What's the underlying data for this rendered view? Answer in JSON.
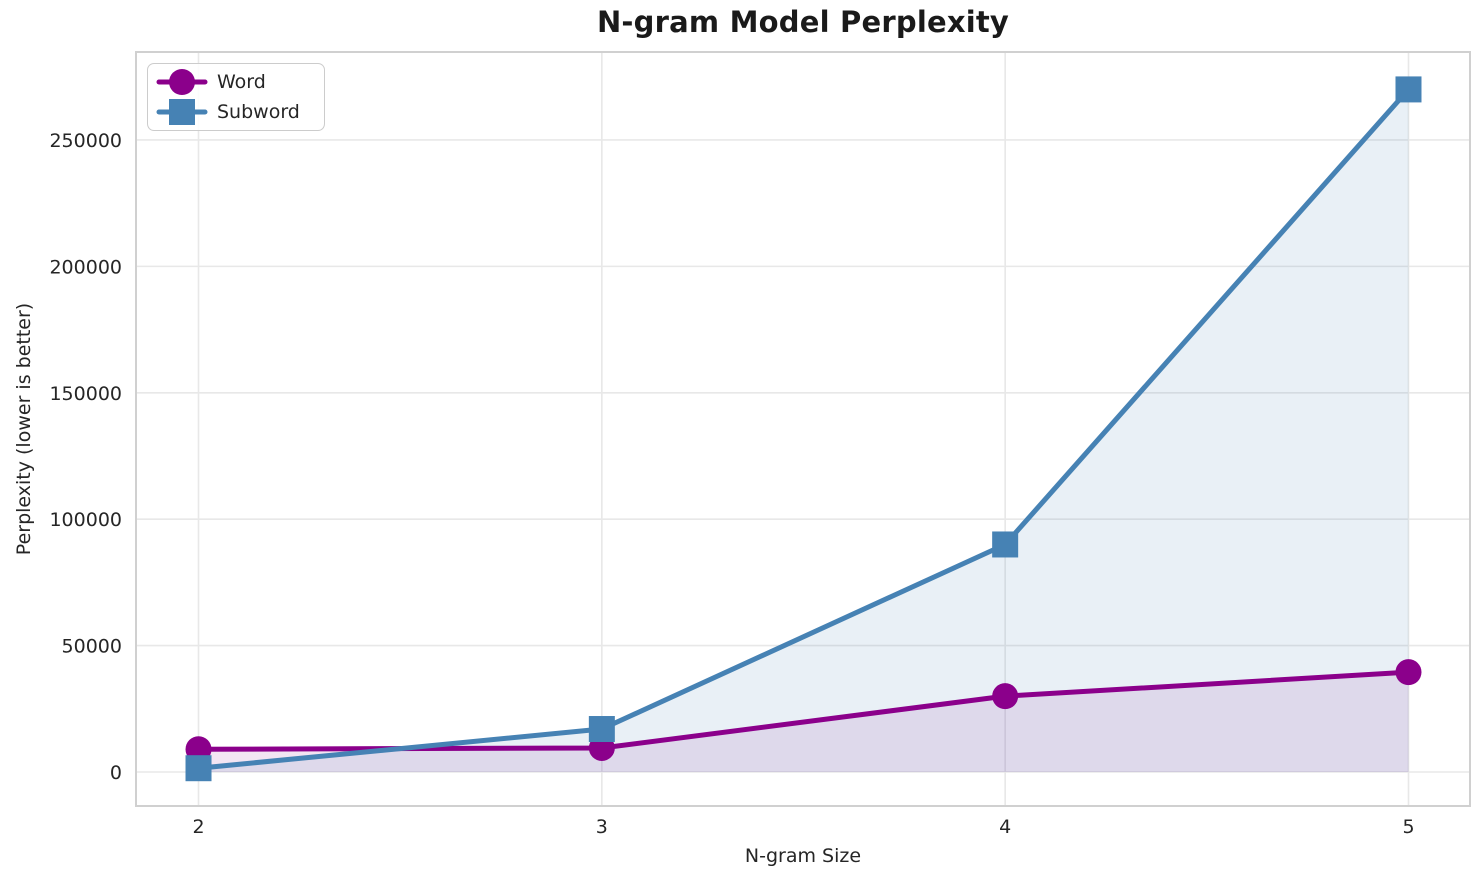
{
  "chart_data": {
    "type": "line",
    "title": "N-gram Model Perplexity",
    "xlabel": "N-gram Size",
    "ylabel": "Perplexity (lower is better)",
    "x": [
      2,
      3,
      4,
      5
    ],
    "series": [
      {
        "name": "Word",
        "color": "#8B008B",
        "marker": "circle",
        "values": [
          9000,
          9500,
          30000,
          39500
        ],
        "fill_opacity": 0.1
      },
      {
        "name": "Subword",
        "color": "#4682B4",
        "marker": "square",
        "values": [
          1500,
          17000,
          90000,
          270000
        ],
        "fill_opacity": 0.12
      }
    ],
    "xticks": {
      "values": [
        2,
        3,
        4,
        5
      ],
      "labels": [
        "2",
        "3",
        "4",
        "5"
      ]
    },
    "yticks": {
      "values": [
        0,
        50000,
        100000,
        150000,
        200000,
        250000
      ],
      "labels": [
        "0",
        "50000",
        "100000",
        "150000",
        "200000",
        "250000"
      ]
    },
    "xlim": [
      1.845,
      5.1525
    ],
    "ylim": [
      -13450,
      284800
    ],
    "grid": true,
    "legend_position": "upper left",
    "grid_color": "#E8E8E8",
    "spine_color": "#D0D0D0",
    "text_color": "#262626",
    "background_color": "#FFFFFF"
  }
}
